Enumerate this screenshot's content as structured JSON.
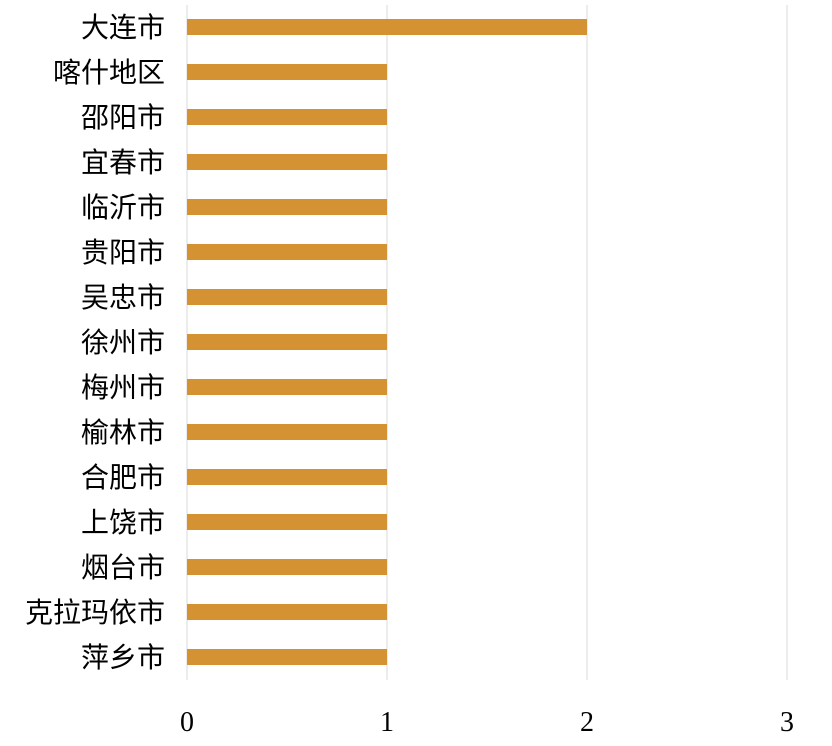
{
  "chart_data": {
    "type": "bar",
    "orientation": "horizontal",
    "categories": [
      "大连市",
      "喀什地区",
      "邵阳市",
      "宜春市",
      "临沂市",
      "贵阳市",
      "吴忠市",
      "徐州市",
      "梅州市",
      "榆林市",
      "合肥市",
      "上饶市",
      "烟台市",
      "克拉玛依市",
      "萍乡市"
    ],
    "values": [
      2,
      1,
      1,
      1,
      1,
      1,
      1,
      1,
      1,
      1,
      1,
      1,
      1,
      1,
      1
    ],
    "xlim": [
      0,
      3
    ],
    "xticks": [
      "0",
      "1",
      "2",
      "3"
    ],
    "grid": true,
    "bar_color": "#D49232",
    "grid_color": "#D9D9D9"
  }
}
